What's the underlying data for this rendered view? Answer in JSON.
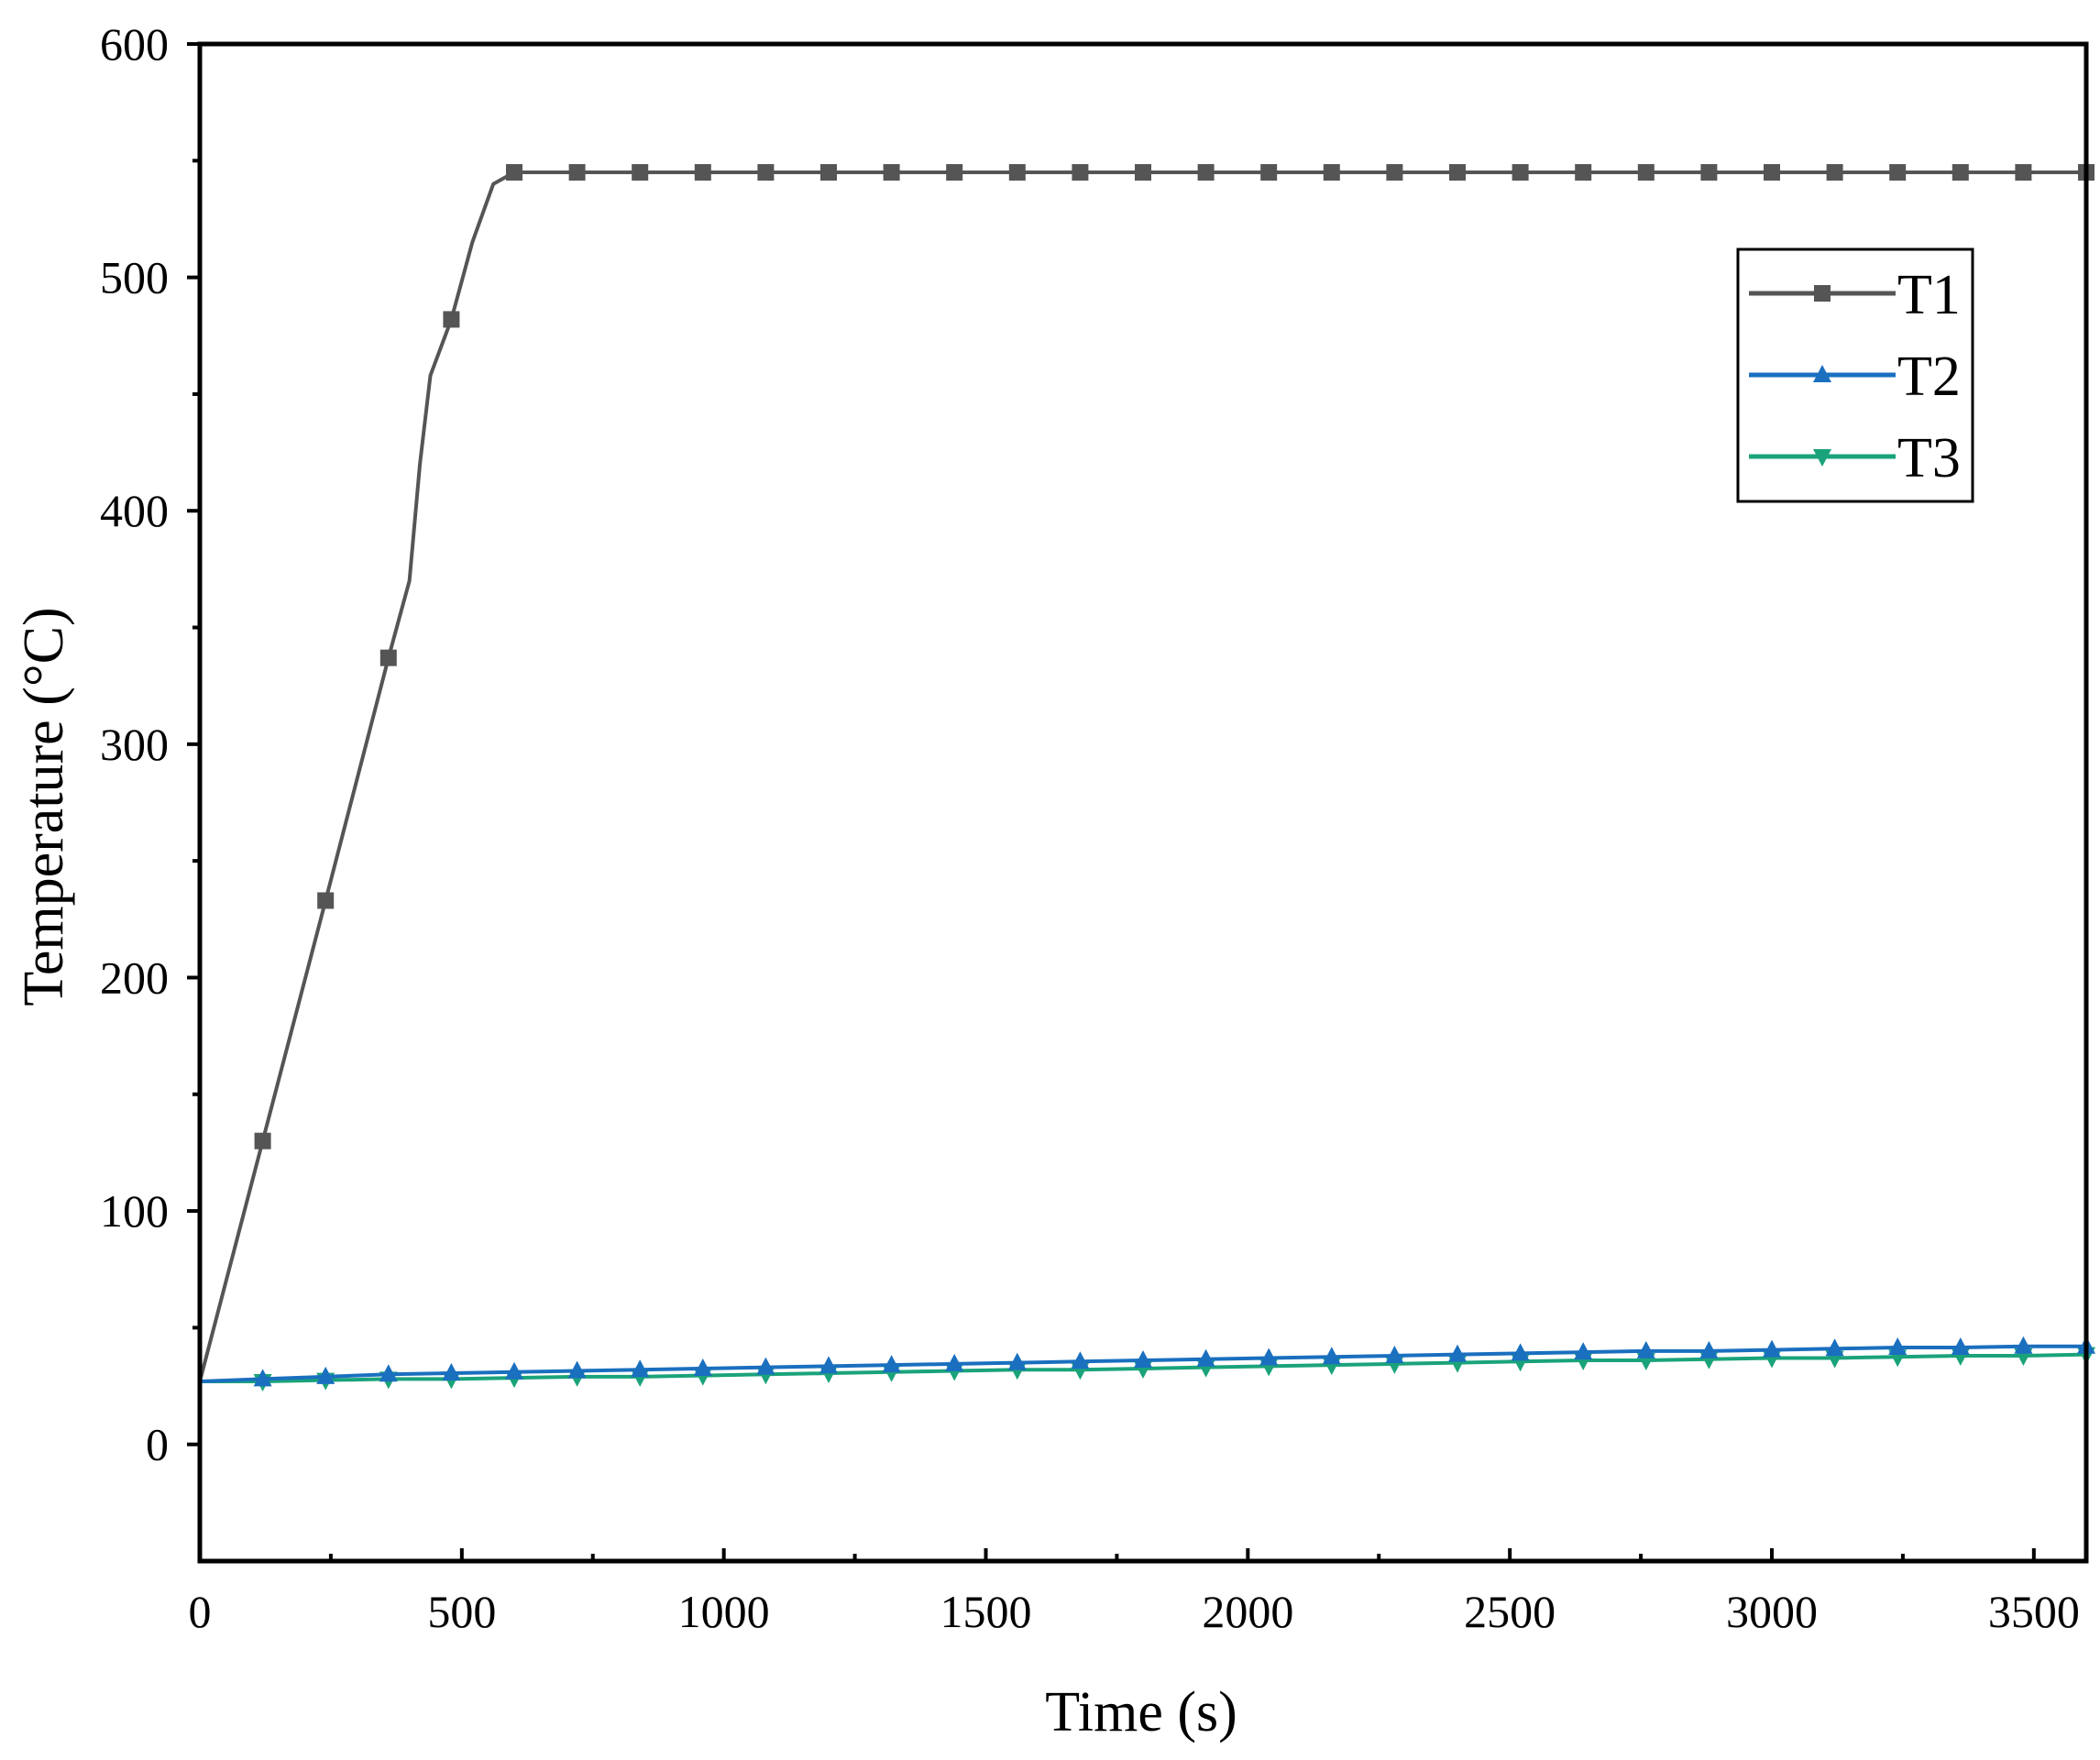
{
  "chart_data": {
    "type": "line",
    "xlabel": "Time (s)",
    "ylabel": "Temperature (°C)",
    "xlim": [
      0,
      3600
    ],
    "ylim": [
      -50,
      600
    ],
    "xticks": [
      0,
      500,
      1000,
      1500,
      2000,
      2500,
      3000,
      3500
    ],
    "yticks": [
      0,
      100,
      200,
      300,
      400,
      500,
      600
    ],
    "grid": false,
    "legend_position": "top-right",
    "series": [
      {
        "name": "T1",
        "color": "#555555",
        "marker": "square",
        "x": [
          0,
          120,
          240,
          360,
          400,
          420,
          440,
          480,
          520,
          560,
          600,
          720,
          840,
          960,
          1080,
          1200,
          1320,
          1440,
          1560,
          1680,
          1800,
          1920,
          2040,
          2160,
          2280,
          2400,
          2520,
          2640,
          2760,
          2880,
          3000,
          3120,
          3240,
          3360,
          3480,
          3600
        ],
        "y": [
          27,
          130,
          233,
          337,
          370,
          420,
          458,
          482,
          515,
          540,
          545,
          545,
          545,
          545,
          545,
          545,
          545,
          545,
          545,
          545,
          545,
          545,
          545,
          545,
          545,
          545,
          545,
          545,
          545,
          545,
          545,
          545,
          545,
          545,
          545,
          545
        ],
        "marker_x": [
          120,
          240,
          360,
          480,
          600,
          720,
          840,
          960,
          1080,
          1200,
          1320,
          1440,
          1560,
          1680,
          1800,
          1920,
          2040,
          2160,
          2280,
          2400,
          2520,
          2640,
          2760,
          2880,
          3000,
          3120,
          3240,
          3360,
          3480,
          3600
        ]
      },
      {
        "name": "T2",
        "color": "#1a6fbf",
        "marker": "triangle-up",
        "x": [
          0,
          120,
          240,
          360,
          480,
          600,
          720,
          840,
          960,
          1080,
          1200,
          1320,
          1440,
          1560,
          1680,
          1800,
          1920,
          2040,
          2160,
          2280,
          2400,
          2520,
          2640,
          2760,
          2880,
          3000,
          3120,
          3240,
          3360,
          3480,
          3600
        ],
        "y": [
          27,
          28,
          29,
          30,
          30.5,
          31,
          31.5,
          32,
          32.5,
          33,
          33.5,
          34,
          34.5,
          35,
          35.5,
          36,
          36.5,
          37,
          37.5,
          38,
          38.5,
          39,
          39.5,
          40,
          40,
          40.5,
          41,
          41.5,
          41.5,
          42,
          42
        ]
      },
      {
        "name": "T3",
        "color": "#1aa37a",
        "marker": "triangle-down",
        "x": [
          0,
          120,
          240,
          360,
          480,
          600,
          720,
          840,
          960,
          1080,
          1200,
          1320,
          1440,
          1560,
          1680,
          1800,
          1920,
          2040,
          2160,
          2280,
          2400,
          2520,
          2640,
          2760,
          2880,
          3000,
          3120,
          3240,
          3360,
          3480,
          3600
        ],
        "y": [
          27,
          27,
          27.5,
          28,
          28,
          28.5,
          29,
          29,
          29.5,
          30,
          30.5,
          31,
          31.5,
          32,
          32,
          32.5,
          33,
          33.5,
          34,
          34.5,
          35,
          35.5,
          36,
          36,
          36.5,
          37,
          37,
          37.5,
          38,
          38,
          38.5
        ]
      }
    ]
  }
}
